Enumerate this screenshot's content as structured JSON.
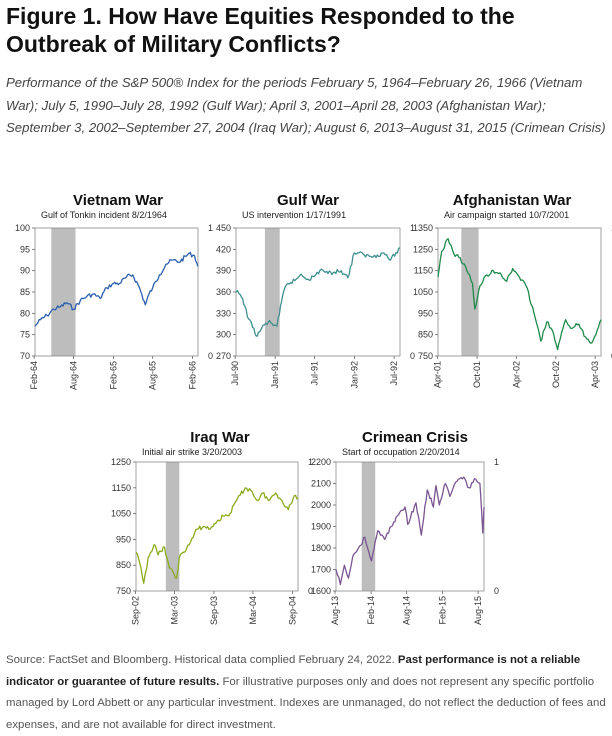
{
  "title": "Figure 1. How Have Equities Responded to the Outbreak of Military Conflicts?",
  "subtitle": "Performance of the S&P 500® Index for the periods February 5, 1964–February 26, 1966 (Vietnam War); July 5, 1990–July 28, 1992 (Gulf War); April 3, 2001–April 28, 2003 (Afghanistan War); September 3, 2002–September 27, 2004 (Iraq War); August 6, 2013–August 31, 2015 (Crimean Crisis)",
  "footnote": {
    "source": "Source: FactSet and Bloomberg. Historical data complied February 24, 2022. ",
    "bold": "Past performance is not a reliable indicator or guarantee of future results.",
    "rest": " For illustrative purposes only and does not represent any specific portfolio managed by Lord Abbett or any particular investment. Indexes are unmanaged, do not reflect the deduction of fees and expenses, and are not available for direct investment."
  },
  "colors": {
    "vietnam": "#2b5fae",
    "gulf": "#3f8f8f",
    "afghanistan": "#1e8a4a",
    "iraq": "#8bab1c",
    "crimea": "#7a5593",
    "shade": "#bdbdbd"
  },
  "chart_data": [
    {
      "type": "line",
      "title": "Vietnam War",
      "annotation": "Gulf of Tonkin incident 8/2/1964",
      "ylim": [
        70,
        100
      ],
      "yticks": [
        70,
        75,
        80,
        85,
        90,
        95,
        100
      ],
      "right_axis": [
        "1",
        "0"
      ],
      "xlim": [
        "1964-02-05",
        "1966-02-26"
      ],
      "xticks": [
        [
          "1964-02-01",
          "Feb-64"
        ],
        [
          "1964-08-01",
          "Aug-64"
        ],
        [
          "1965-02-01",
          "Feb-65"
        ],
        [
          "1965-08-01",
          "Aug-65"
        ],
        [
          "1966-02-01",
          "Feb-66"
        ]
      ],
      "event": [
        "1964-04-20",
        "1964-08-10"
      ],
      "color": "vietnam",
      "series": {
        "x": [
          "1964-02-05",
          "1964-03-01",
          "1964-04-01",
          "1964-05-01",
          "1964-06-01",
          "1964-07-01",
          "1964-08-01",
          "1964-09-01",
          "1964-10-01",
          "1964-11-01",
          "1964-12-01",
          "1965-01-01",
          "1965-02-01",
          "1965-03-01",
          "1965-04-01",
          "1965-05-01",
          "1965-06-01",
          "1965-06-28",
          "1965-07-15",
          "1965-08-01",
          "1965-09-01",
          "1965-10-01",
          "1965-11-01",
          "1965-12-01",
          "1966-01-15",
          "1966-02-10",
          "1966-02-26"
        ],
        "y": [
          77.0,
          78.5,
          79.5,
          81.0,
          81.5,
          82.5,
          81.0,
          83.0,
          84.0,
          84.5,
          83.5,
          86.0,
          87.0,
          87.0,
          88.5,
          89.0,
          86.0,
          82.0,
          84.5,
          86.0,
          89.0,
          91.5,
          92.5,
          92.0,
          94.0,
          93.5,
          91.0
        ]
      }
    },
    {
      "type": "line",
      "title": "Gulf War",
      "annotation": "US intervention 1/17/1991",
      "ylim": [
        270,
        450
      ],
      "yticks": [
        270,
        300,
        330,
        360,
        390,
        420,
        450
      ],
      "right_axis": [
        "1",
        "0"
      ],
      "xlim": [
        "1990-07-05",
        "1992-07-28"
      ],
      "xticks": [
        [
          "1990-07-01",
          "Jul-90"
        ],
        [
          "1991-01-01",
          "Jan-91"
        ],
        [
          "1991-07-01",
          "Jul-91"
        ],
        [
          "1992-01-01",
          "Jan-92"
        ],
        [
          "1992-07-01",
          "Jul-92"
        ]
      ],
      "event": [
        "1990-11-15",
        "1991-01-22"
      ],
      "color": "gulf",
      "series": {
        "x": [
          "1990-07-05",
          "1990-07-25",
          "1990-08-15",
          "1990-09-01",
          "1990-09-20",
          "1990-10-11",
          "1990-11-01",
          "1990-12-01",
          "1991-01-09",
          "1991-01-20",
          "1991-02-10",
          "1991-03-01",
          "1991-04-01",
          "1991-05-01",
          "1991-06-01",
          "1991-07-01",
          "1991-08-01",
          "1991-09-01",
          "1991-10-01",
          "1991-11-01",
          "1991-12-01",
          "1991-12-31",
          "1992-01-15",
          "1992-02-15",
          "1992-03-15",
          "1992-04-15",
          "1992-05-15",
          "1992-06-15",
          "1992-07-28"
        ],
        "y": [
          360,
          356,
          340,
          322,
          310,
          298,
          310,
          318,
          312,
          328,
          362,
          372,
          376,
          385,
          378,
          382,
          392,
          386,
          388,
          390,
          380,
          415,
          415,
          412,
          410,
          412,
          415,
          405,
          422
        ]
      }
    },
    {
      "type": "line",
      "title": "Afghanistan War",
      "annotation": "Air campaign started 10/7/2001",
      "ylim": [
        750,
        1350
      ],
      "yticks": [
        750,
        850,
        950,
        1050,
        1150,
        1250,
        1350
      ],
      "right_axis": [
        "1",
        "0"
      ],
      "xlim": [
        "2001-04-03",
        "2003-04-28"
      ],
      "xticks": [
        [
          "2001-04-01",
          "Apr-01"
        ],
        [
          "2001-10-01",
          "Oct-01"
        ],
        [
          "2002-04-01",
          "Apr-02"
        ],
        [
          "2002-10-01",
          "Oct-02"
        ],
        [
          "2003-04-01",
          "Apr-03"
        ]
      ],
      "event": [
        "2001-07-20",
        "2001-10-08"
      ],
      "color": "afghanistan",
      "series": {
        "x": [
          "2001-04-03",
          "2001-04-20",
          "2001-05-20",
          "2001-06-15",
          "2001-07-15",
          "2001-08-15",
          "2001-09-10",
          "2001-09-21",
          "2001-10-15",
          "2001-11-15",
          "2001-12-15",
          "2002-01-15",
          "2002-02-15",
          "2002-03-15",
          "2002-04-15",
          "2002-05-15",
          "2002-06-15",
          "2002-07-23",
          "2002-08-20",
          "2002-09-15",
          "2002-10-09",
          "2002-11-15",
          "2002-12-15",
          "2003-01-15",
          "2003-02-15",
          "2003-03-11",
          "2003-04-10",
          "2003-04-28"
        ],
        "y": [
          1120,
          1240,
          1300,
          1230,
          1210,
          1150,
          1090,
          970,
          1080,
          1130,
          1150,
          1140,
          1100,
          1160,
          1120,
          1080,
          980,
          820,
          910,
          870,
          780,
          920,
          880,
          900,
          840,
          810,
          870,
          920
        ]
      }
    },
    {
      "type": "line",
      "title": "Iraq War",
      "annotation": "Initial air strike 3/20/2003",
      "ylim": [
        750,
        1250
      ],
      "yticks": [
        750,
        850,
        950,
        1050,
        1150,
        1250
      ],
      "right_axis": [
        "1",
        "0"
      ],
      "xlim": [
        "2002-09-03",
        "2004-09-27"
      ],
      "xticks": [
        [
          "2002-09-01",
          "Sep-02"
        ],
        [
          "2003-03-01",
          "Mar-03"
        ],
        [
          "2003-09-01",
          "Sep-03"
        ],
        [
          "2004-03-01",
          "Mar-04"
        ],
        [
          "2004-09-01",
          "Sep-04"
        ]
      ],
      "event": [
        "2003-01-20",
        "2003-03-24"
      ],
      "color": "iraq",
      "series": {
        "x": [
          "2002-09-03",
          "2002-09-20",
          "2002-10-09",
          "2002-10-30",
          "2002-11-27",
          "2002-12-15",
          "2003-01-14",
          "2003-02-05",
          "2003-03-11",
          "2003-03-24",
          "2003-04-15",
          "2003-05-15",
          "2003-06-15",
          "2003-07-15",
          "2003-08-15",
          "2003-09-15",
          "2003-10-15",
          "2003-11-15",
          "2003-12-15",
          "2004-01-26",
          "2004-02-20",
          "2004-03-24",
          "2004-04-15",
          "2004-05-15",
          "2004-06-15",
          "2004-07-15",
          "2004-08-13",
          "2004-09-10",
          "2004-09-27"
        ],
        "y": [
          900,
          860,
          780,
          880,
          930,
          890,
          920,
          840,
          800,
          880,
          900,
          940,
          990,
          1000,
          990,
          1020,
          1040,
          1050,
          1100,
          1150,
          1140,
          1100,
          1130,
          1100,
          1130,
          1100,
          1065,
          1120,
          1110
        ]
      }
    },
    {
      "type": "line",
      "title": "Crimean Crisis",
      "annotation": "Start of occupation 2/20/2014",
      "ylim": [
        1600,
        2200
      ],
      "yticks": [
        1600,
        1700,
        1800,
        1900,
        2000,
        2100,
        2200
      ],
      "right_axis": [
        "1",
        "0"
      ],
      "xlim": [
        "2013-08-06",
        "2015-08-31"
      ],
      "xticks": [
        [
          "2013-08-01",
          "Aug-13"
        ],
        [
          "2014-02-01",
          "Feb-14"
        ],
        [
          "2014-08-01",
          "Aug-14"
        ],
        [
          "2015-02-01",
          "Feb-15"
        ],
        [
          "2015-08-01",
          "Aug-15"
        ]
      ],
      "event": [
        "2013-12-15",
        "2014-02-22"
      ],
      "color": "crimea",
      "series": {
        "x": [
          "2013-08-06",
          "2013-08-28",
          "2013-09-18",
          "2013-10-09",
          "2013-10-30",
          "2013-11-29",
          "2013-12-31",
          "2014-02-03",
          "2014-03-07",
          "2014-04-11",
          "2014-05-15",
          "2014-06-15",
          "2014-07-24",
          "2014-08-07",
          "2014-09-18",
          "2014-10-15",
          "2014-11-15",
          "2014-12-16",
          "2014-12-29",
          "2015-01-15",
          "2015-02-15",
          "2015-03-10",
          "2015-04-15",
          "2015-05-20",
          "2015-06-15",
          "2015-07-20",
          "2015-08-10",
          "2015-08-25",
          "2015-08-31"
        ],
        "y": [
          1700,
          1630,
          1720,
          1660,
          1760,
          1800,
          1850,
          1740,
          1880,
          1840,
          1900,
          1950,
          1990,
          1910,
          2010,
          1860,
          2070,
          1990,
          2090,
          2000,
          2100,
          2040,
          2110,
          2130,
          2080,
          2120,
          2100,
          1870,
          1990
        ]
      }
    }
  ]
}
